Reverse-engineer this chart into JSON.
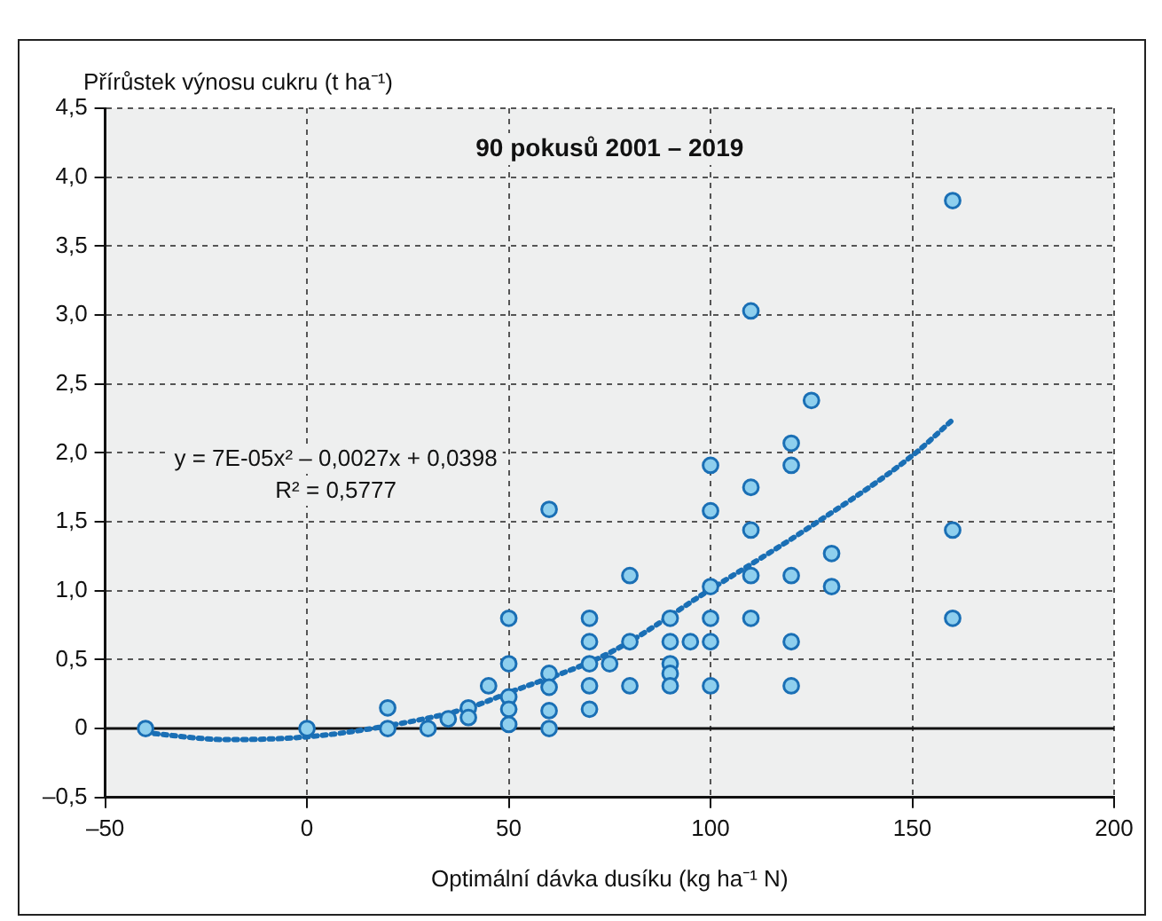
{
  "chart_data": {
    "type": "scatter",
    "title": "90 pokusů 2001 – 2019",
    "xlabel": "Optimální dávka dusíku (kg ha⁻¹ N)",
    "ylabel": "Přírůstek výnosu cukru (t ha⁻¹)",
    "annotations": [
      "y = 7E-05x² – 0,0027x + 0,0398",
      "R² = 0,5777"
    ],
    "xlim": [
      -50,
      200
    ],
    "xticks": [
      {
        "value": -50,
        "label": "–50"
      },
      0,
      50,
      100,
      150,
      200
    ],
    "ylim": [
      -0.5,
      4.5
    ],
    "yticks": [
      {
        "value": -0.5,
        "label": "–0,5"
      },
      0,
      {
        "value": 0.5,
        "label": "0,5"
      },
      {
        "value": 1,
        "label": "1,0"
      },
      {
        "value": 1.5,
        "label": "1,5"
      },
      {
        "value": 2,
        "label": "2,0"
      },
      {
        "value": 2.5,
        "label": "2,5"
      },
      {
        "value": 3,
        "label": "3,0"
      },
      {
        "value": 3.5,
        "label": "3,5"
      },
      {
        "value": 4,
        "label": "4,0"
      },
      {
        "value": 4.5,
        "label": "4,5"
      }
    ],
    "grid": true,
    "legend": false,
    "marker": "circle",
    "series": [
      {
        "type": "line",
        "color": "#1a6fb5",
        "line_style": "dotted",
        "marker": "none",
        "x": [
          -40,
          -20,
          0,
          20,
          40,
          50,
          75,
          100,
          125,
          150,
          160
        ],
        "values": [
          -0.03,
          -0.08,
          -0.06,
          0.02,
          0.15,
          0.26,
          0.55,
          1.01,
          1.47,
          1.98,
          2.24
        ]
      },
      {
        "type": "scatter",
        "color": "#8ecfee",
        "x": [
          -40,
          0,
          20,
          20,
          30,
          35,
          40,
          40,
          45,
          50,
          50,
          50,
          50,
          50,
          60,
          60,
          60,
          60,
          60,
          70,
          70,
          70,
          70,
          70,
          75,
          80,
          80,
          80,
          90,
          90,
          90,
          90,
          90,
          95,
          100,
          100,
          100,
          100,
          100,
          100,
          110,
          110,
          110,
          110,
          110,
          120,
          120,
          120,
          120,
          120,
          125,
          130,
          130,
          160,
          160,
          160
        ],
        "values": [
          0,
          0,
          0.15,
          0,
          0,
          0.07,
          0.15,
          0.08,
          0.31,
          0.8,
          0.47,
          0.23,
          0.14,
          0.03,
          1.59,
          0.4,
          0.3,
          0.13,
          0,
          0.8,
          0.63,
          0.47,
          0.31,
          0.14,
          0.47,
          1.11,
          0.63,
          0.31,
          0.8,
          0.63,
          0.47,
          0.4,
          0.31,
          0.63,
          1.91,
          1.58,
          1.03,
          0.8,
          0.63,
          0.31,
          3.03,
          1.75,
          1.44,
          1.11,
          0.8,
          2.07,
          1.91,
          1.11,
          0.63,
          0.31,
          2.38,
          1.27,
          1.03,
          3.83,
          1.44,
          0.8
        ]
      }
    ]
  }
}
